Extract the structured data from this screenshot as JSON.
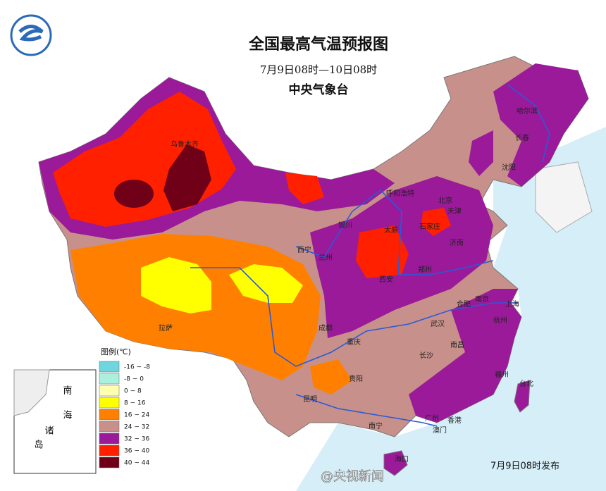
{
  "header": {
    "title": "全国最高气温预报图",
    "subtitle": "7月9日08时—10日08时",
    "agency": "中央气象台"
  },
  "legend": {
    "title": "图例(℃)",
    "items": [
      {
        "label": "-16 ~ -8",
        "color": "#6fd6e0"
      },
      {
        "label": "-8 ~ 0",
        "color": "#aaf0dc"
      },
      {
        "label": "0 ~ 8",
        "color": "#ffffb0"
      },
      {
        "label": "8 ~ 16",
        "color": "#ffff00"
      },
      {
        "label": "16 ~ 24",
        "color": "#ff8000"
      },
      {
        "label": "24 ~ 32",
        "color": "#c8908a"
      },
      {
        "label": "32 ~ 36",
        "color": "#9a1a9a"
      },
      {
        "label": "36 ~ 40",
        "color": "#ff2000"
      },
      {
        "label": "40 ~ 44",
        "color": "#700018"
      }
    ]
  },
  "cities": [
    "乌鲁木齐",
    "呼和浩特",
    "哈尔滨",
    "长春",
    "沈阳",
    "北京",
    "天津",
    "石家庄",
    "太原",
    "银川",
    "济南",
    "西宁",
    "兰州",
    "郑州",
    "西安",
    "合肥",
    "南京",
    "上海",
    "武汉",
    "杭州",
    "成都",
    "重庆",
    "拉萨",
    "长沙",
    "南昌",
    "贵阳",
    "福州",
    "台北",
    "昆明",
    "南宁",
    "广州",
    "香港",
    "澳门",
    "海口"
  ],
  "inset": {
    "labels": [
      "南",
      "海",
      "诸",
      "岛"
    ]
  },
  "footer": {
    "issued": "7月9日08时发布",
    "watermark": "@央视新闻"
  }
}
